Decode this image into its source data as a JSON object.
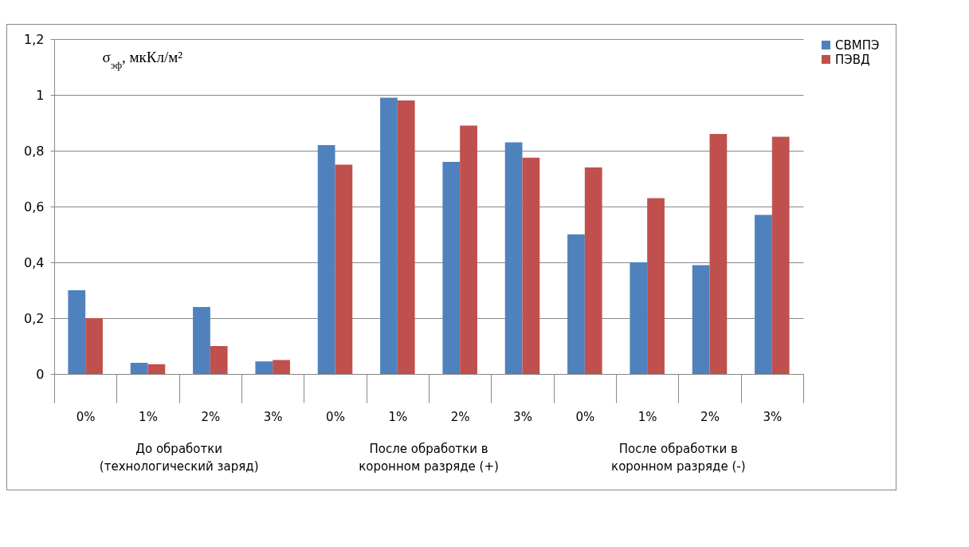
{
  "chart_data": {
    "type": "bar",
    "ylabel": "σ$_{эф}$, мкКл/м²",
    "categories": [
      "0%",
      "1%",
      "2%",
      "3%",
      "0%",
      "1%",
      "2%",
      "3%",
      "0%",
      "1%",
      "2%",
      "3%"
    ],
    "series": [
      {
        "name": "СВМПЭ",
        "color": "#4f81bd",
        "values": [
          0.3,
          0.04,
          0.24,
          0.045,
          0.82,
          0.99,
          0.76,
          0.83,
          0.5,
          0.4,
          0.39,
          0.57
        ]
      },
      {
        "name": "ПЭВД",
        "color": "#c0504d",
        "values": [
          0.2,
          0.035,
          0.1,
          0.05,
          0.75,
          0.98,
          0.89,
          0.775,
          0.74,
          0.63,
          0.86,
          0.85
        ]
      }
    ],
    "ylim": [
      0,
      1.2
    ],
    "yticks": [
      0,
      {
        "value": 0.2,
        "label": "0,2"
      },
      {
        "value": 0.4,
        "label": "0,4"
      },
      {
        "value": 0.6,
        "label": "0,6"
      },
      {
        "value": 0.8,
        "label": "0,8"
      },
      1,
      {
        "value": 1.2,
        "label": "1,2"
      }
    ],
    "grid": "y",
    "legend": "right",
    "annotations": [
      "До обработки (технологический заряд)",
      "После обработки в коронном разряде (+)",
      "После обработки в коронном разряде (-)"
    ]
  }
}
